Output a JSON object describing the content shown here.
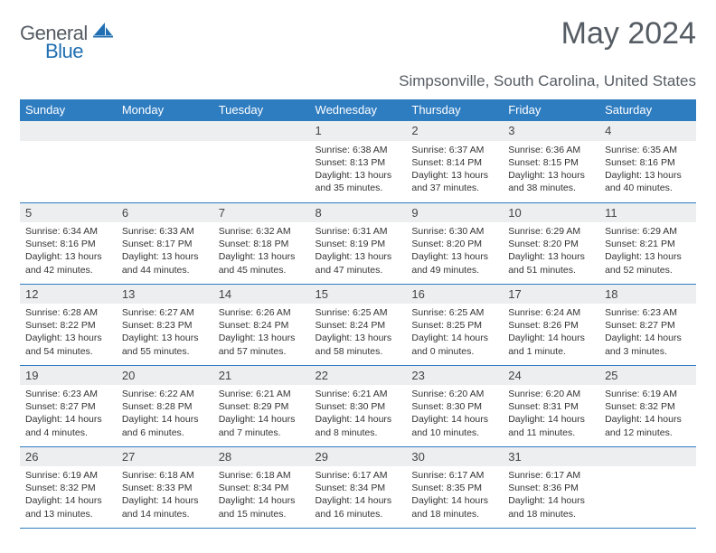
{
  "brand": {
    "part1": "General",
    "part2": "Blue"
  },
  "title": "May 2024",
  "location": "Simpsonville, South Carolina, United States",
  "colors": {
    "header_bg": "#2f7dc1",
    "header_text": "#ffffff",
    "daynum_bg": "#eceef0",
    "rule": "#2f7dc1",
    "title_color": "#555c63",
    "body_text": "#333333"
  },
  "day_headers": [
    "Sunday",
    "Monday",
    "Tuesday",
    "Wednesday",
    "Thursday",
    "Friday",
    "Saturday"
  ],
  "weeks": [
    [
      null,
      null,
      null,
      {
        "d": "1",
        "sunrise": "6:38 AM",
        "sunset": "8:13 PM",
        "daylight": "13 hours and 35 minutes."
      },
      {
        "d": "2",
        "sunrise": "6:37 AM",
        "sunset": "8:14 PM",
        "daylight": "13 hours and 37 minutes."
      },
      {
        "d": "3",
        "sunrise": "6:36 AM",
        "sunset": "8:15 PM",
        "daylight": "13 hours and 38 minutes."
      },
      {
        "d": "4",
        "sunrise": "6:35 AM",
        "sunset": "8:16 PM",
        "daylight": "13 hours and 40 minutes."
      }
    ],
    [
      {
        "d": "5",
        "sunrise": "6:34 AM",
        "sunset": "8:16 PM",
        "daylight": "13 hours and 42 minutes."
      },
      {
        "d": "6",
        "sunrise": "6:33 AM",
        "sunset": "8:17 PM",
        "daylight": "13 hours and 44 minutes."
      },
      {
        "d": "7",
        "sunrise": "6:32 AM",
        "sunset": "8:18 PM",
        "daylight": "13 hours and 45 minutes."
      },
      {
        "d": "8",
        "sunrise": "6:31 AM",
        "sunset": "8:19 PM",
        "daylight": "13 hours and 47 minutes."
      },
      {
        "d": "9",
        "sunrise": "6:30 AM",
        "sunset": "8:20 PM",
        "daylight": "13 hours and 49 minutes."
      },
      {
        "d": "10",
        "sunrise": "6:29 AM",
        "sunset": "8:20 PM",
        "daylight": "13 hours and 51 minutes."
      },
      {
        "d": "11",
        "sunrise": "6:29 AM",
        "sunset": "8:21 PM",
        "daylight": "13 hours and 52 minutes."
      }
    ],
    [
      {
        "d": "12",
        "sunrise": "6:28 AM",
        "sunset": "8:22 PM",
        "daylight": "13 hours and 54 minutes."
      },
      {
        "d": "13",
        "sunrise": "6:27 AM",
        "sunset": "8:23 PM",
        "daylight": "13 hours and 55 minutes."
      },
      {
        "d": "14",
        "sunrise": "6:26 AM",
        "sunset": "8:24 PM",
        "daylight": "13 hours and 57 minutes."
      },
      {
        "d": "15",
        "sunrise": "6:25 AM",
        "sunset": "8:24 PM",
        "daylight": "13 hours and 58 minutes."
      },
      {
        "d": "16",
        "sunrise": "6:25 AM",
        "sunset": "8:25 PM",
        "daylight": "14 hours and 0 minutes."
      },
      {
        "d": "17",
        "sunrise": "6:24 AM",
        "sunset": "8:26 PM",
        "daylight": "14 hours and 1 minute."
      },
      {
        "d": "18",
        "sunrise": "6:23 AM",
        "sunset": "8:27 PM",
        "daylight": "14 hours and 3 minutes."
      }
    ],
    [
      {
        "d": "19",
        "sunrise": "6:23 AM",
        "sunset": "8:27 PM",
        "daylight": "14 hours and 4 minutes."
      },
      {
        "d": "20",
        "sunrise": "6:22 AM",
        "sunset": "8:28 PM",
        "daylight": "14 hours and 6 minutes."
      },
      {
        "d": "21",
        "sunrise": "6:21 AM",
        "sunset": "8:29 PM",
        "daylight": "14 hours and 7 minutes."
      },
      {
        "d": "22",
        "sunrise": "6:21 AM",
        "sunset": "8:30 PM",
        "daylight": "14 hours and 8 minutes."
      },
      {
        "d": "23",
        "sunrise": "6:20 AM",
        "sunset": "8:30 PM",
        "daylight": "14 hours and 10 minutes."
      },
      {
        "d": "24",
        "sunrise": "6:20 AM",
        "sunset": "8:31 PM",
        "daylight": "14 hours and 11 minutes."
      },
      {
        "d": "25",
        "sunrise": "6:19 AM",
        "sunset": "8:32 PM",
        "daylight": "14 hours and 12 minutes."
      }
    ],
    [
      {
        "d": "26",
        "sunrise": "6:19 AM",
        "sunset": "8:32 PM",
        "daylight": "14 hours and 13 minutes."
      },
      {
        "d": "27",
        "sunrise": "6:18 AM",
        "sunset": "8:33 PM",
        "daylight": "14 hours and 14 minutes."
      },
      {
        "d": "28",
        "sunrise": "6:18 AM",
        "sunset": "8:34 PM",
        "daylight": "14 hours and 15 minutes."
      },
      {
        "d": "29",
        "sunrise": "6:17 AM",
        "sunset": "8:34 PM",
        "daylight": "14 hours and 16 minutes."
      },
      {
        "d": "30",
        "sunrise": "6:17 AM",
        "sunset": "8:35 PM",
        "daylight": "14 hours and 18 minutes."
      },
      {
        "d": "31",
        "sunrise": "6:17 AM",
        "sunset": "8:36 PM",
        "daylight": "14 hours and 18 minutes."
      },
      null
    ]
  ],
  "labels": {
    "sunrise": "Sunrise:",
    "sunset": "Sunset:",
    "daylight": "Daylight:"
  }
}
